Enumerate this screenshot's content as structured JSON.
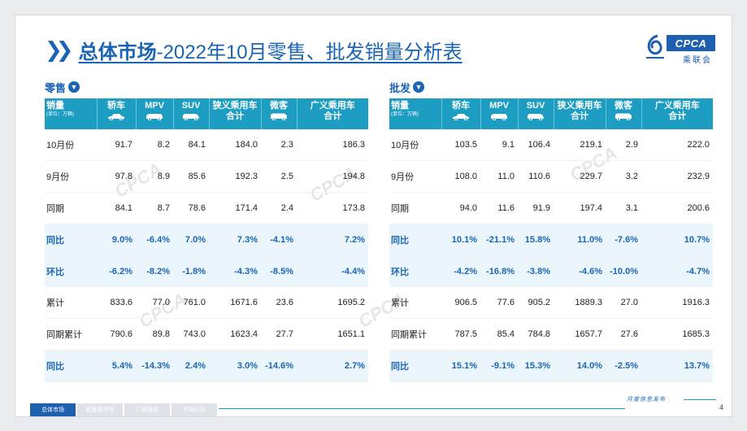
{
  "title": {
    "bold": "总体市场",
    "rest": "-2022年10月零售、批发销量分析表"
  },
  "logo": {
    "text": "CPCA",
    "sub": "乘联会"
  },
  "columns": [
    {
      "label": "轿车",
      "icon": "sedan-icon"
    },
    {
      "label": "MPV",
      "icon": "mpv-icon"
    },
    {
      "label": "SUV",
      "icon": "suv-icon"
    },
    {
      "label": "狭义乘用车合计",
      "icon": ""
    },
    {
      "label": "微客",
      "icon": "minivan-icon"
    },
    {
      "label": "广义乘用车合计",
      "icon": ""
    }
  ],
  "first_col": {
    "label": "销量",
    "unit": "(单位：万辆)"
  },
  "retail": {
    "heading": "零售",
    "rows": [
      {
        "label": "10月份",
        "values": [
          "91.7",
          "8.2",
          "84.1",
          "184.0",
          "2.3",
          "186.3"
        ],
        "highlight": false
      },
      {
        "label": "9月份",
        "values": [
          "97.8",
          "8.9",
          "85.6",
          "192.3",
          "2.5",
          "194.8"
        ],
        "highlight": false
      },
      {
        "label": "同期",
        "values": [
          "84.1",
          "8.7",
          "78.6",
          "171.4",
          "2.4",
          "173.8"
        ],
        "highlight": false
      },
      {
        "label": "同比",
        "values": [
          "9.0%",
          "-6.4%",
          "7.0%",
          "7.3%",
          "-4.1%",
          "7.2%"
        ],
        "highlight": true
      },
      {
        "label": "环比",
        "values": [
          "-6.2%",
          "-8.2%",
          "-1.8%",
          "-4.3%",
          "-8.5%",
          "-4.4%"
        ],
        "highlight": true
      },
      {
        "label": "累计",
        "values": [
          "833.6",
          "77.0",
          "761.0",
          "1671.6",
          "23.6",
          "1695.2"
        ],
        "highlight": false
      },
      {
        "label": "同期累计",
        "values": [
          "790.6",
          "89.8",
          "743.0",
          "1623.4",
          "27.7",
          "1651.1"
        ],
        "highlight": false
      },
      {
        "label": "同比",
        "values": [
          "5.4%",
          "-14.3%",
          "2.4%",
          "3.0%",
          "-14.6%",
          "2.7%"
        ],
        "highlight": true
      }
    ]
  },
  "wholesale": {
    "heading": "批发",
    "rows": [
      {
        "label": "10月份",
        "values": [
          "103.5",
          "9.1",
          "106.4",
          "219.1",
          "2.9",
          "222.0"
        ],
        "highlight": false
      },
      {
        "label": "9月份",
        "values": [
          "108.0",
          "11.0",
          "110.6",
          "229.7",
          "3.2",
          "232.9"
        ],
        "highlight": false
      },
      {
        "label": "同期",
        "values": [
          "94.0",
          "11.6",
          "91.9",
          "197.4",
          "3.1",
          "200.6"
        ],
        "highlight": false
      },
      {
        "label": "同比",
        "values": [
          "10.1%",
          "-21.1%",
          "15.8%",
          "11.0%",
          "-7.6%",
          "10.7%"
        ],
        "highlight": true
      },
      {
        "label": "环比",
        "values": [
          "-4.2%",
          "-16.8%",
          "-3.8%",
          "-4.6%",
          "-10.0%",
          "-4.7%"
        ],
        "highlight": true
      },
      {
        "label": "累计",
        "values": [
          "906.5",
          "77.6",
          "905.2",
          "1889.3",
          "27.0",
          "1916.3"
        ],
        "highlight": false
      },
      {
        "label": "同期累计",
        "values": [
          "787.5",
          "85.4",
          "784.8",
          "1657.7",
          "27.6",
          "1685.3"
        ],
        "highlight": false
      },
      {
        "label": "同比",
        "values": [
          "15.1%",
          "-9.1%",
          "15.3%",
          "14.0%",
          "-2.5%",
          "13.7%"
        ],
        "highlight": true
      }
    ]
  },
  "footer": {
    "tabs": [
      "总体市场",
      "新能源市场",
      "厂商排名",
      "市场分析"
    ],
    "active_tab": 0,
    "publish": "月度信息发布",
    "page": "4"
  }
}
